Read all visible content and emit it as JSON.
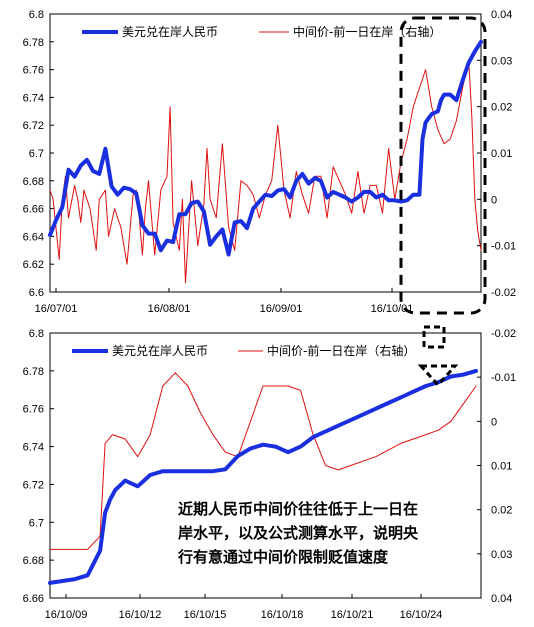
{
  "chart_data": [
    {
      "type": "line",
      "legend_position": "top",
      "x_tick_labels": [
        "16/07/01",
        "16/08/01",
        "16/09/01",
        "16/10/01"
      ],
      "y_left": {
        "range": [
          6.6,
          6.8
        ],
        "ticks": [
          "6.8",
          "6.78",
          "6.76",
          "6.74",
          "6.72",
          "6.7",
          "6.68",
          "6.66",
          "6.64",
          "6.62",
          "6.6"
        ]
      },
      "y_right": {
        "range": [
          -0.02,
          0.04
        ],
        "ticks": [
          "0.04",
          "0.03",
          "0.02",
          "0.01",
          "0",
          "-0.01",
          "-0.02"
        ]
      },
      "series": [
        {
          "name": "美元兑在岸人民币",
          "axis": "left",
          "color": "#1a2fe0",
          "x": [
            0,
            2,
            4,
            6,
            8,
            10,
            12,
            14,
            16,
            18,
            20,
            22,
            24,
            26,
            28,
            30,
            32,
            34,
            36,
            38,
            40,
            42,
            44,
            46,
            48,
            50,
            52,
            54,
            56,
            58,
            60,
            62,
            64,
            66,
            68,
            70,
            72,
            74,
            76,
            78,
            80,
            82,
            84,
            86,
            88,
            90,
            92,
            94,
            96,
            98,
            100,
            102,
            104,
            106,
            108,
            110,
            112,
            114,
            116,
            118,
            120,
            121,
            122,
            124,
            126,
            127,
            128,
            130,
            132,
            134,
            136,
            138,
            140
          ],
          "values": [
            6.641,
            6.652,
            6.661,
            6.688,
            6.683,
            6.691,
            6.695,
            6.687,
            6.685,
            6.703,
            6.676,
            6.67,
            6.675,
            6.674,
            6.671,
            6.648,
            6.642,
            6.642,
            6.63,
            6.637,
            6.636,
            6.656,
            6.656,
            6.664,
            6.665,
            6.658,
            6.634,
            6.64,
            6.645,
            6.627,
            6.65,
            6.651,
            6.646,
            6.66,
            6.665,
            6.67,
            6.669,
            6.673,
            6.674,
            6.668,
            6.68,
            6.685,
            6.678,
            6.682,
            6.68,
            6.668,
            6.672,
            6.67,
            6.668,
            6.665,
            6.668,
            6.672,
            6.672,
            6.668,
            6.67,
            6.666,
            6.666,
            6.665,
            6.666,
            6.67,
            6.67,
            6.71,
            6.722,
            6.728,
            6.73,
            6.738,
            6.742,
            6.742,
            6.738,
            6.752,
            6.765,
            6.773,
            6.78
          ]
        },
        {
          "name": "中间价-前一日在岸（右轴）",
          "axis": "right",
          "color": "#e01010",
          "x": [
            0,
            1,
            3,
            4,
            5,
            6,
            8,
            9,
            10,
            11,
            13,
            15,
            16,
            18,
            19,
            21,
            23,
            25,
            27,
            28,
            29,
            30,
            31,
            32,
            34,
            36,
            38,
            39,
            40,
            42,
            43,
            44,
            45,
            46,
            48,
            50,
            51,
            52,
            54,
            56,
            58,
            60,
            62,
            64,
            66,
            68,
            70,
            72,
            74,
            76,
            78,
            80,
            82,
            84,
            86,
            88,
            90,
            92,
            94,
            96,
            98,
            100,
            102,
            104,
            106,
            108,
            110,
            112,
            114,
            116,
            118,
            120,
            122,
            124,
            126,
            128,
            130,
            132,
            134,
            136,
            137,
            138,
            139,
            140
          ],
          "values": [
            0.002,
            0.0,
            -0.013,
            0.0,
            0.005,
            -0.004,
            0.003,
            0.0,
            -0.005,
            0.002,
            -0.002,
            -0.011,
            0.0,
            0.002,
            -0.008,
            -0.002,
            -0.006,
            -0.014,
            0.001,
            0.002,
            -0.004,
            -0.012,
            -0.002,
            0.004,
            -0.012,
            0.002,
            0.005,
            0.02,
            -0.005,
            -0.011,
            0.0,
            -0.018,
            -0.007,
            0.004,
            -0.01,
            -0.001,
            0.011,
            0.0,
            -0.004,
            0.012,
            -0.006,
            -0.011,
            0.004,
            0.003,
            0.001,
            -0.004,
            0.001,
            0.004,
            0.016,
            0.002,
            -0.004,
            0.006,
            0.001,
            -0.003,
            0.005,
            0.005,
            -0.004,
            0.007,
            0.004,
            0.001,
            -0.003,
            0.006,
            -0.003,
            0.003,
            0.003,
            -0.003,
            0.011,
            0.0,
            0.008,
            0.013,
            0.02,
            0.024,
            0.028,
            0.02,
            0.015,
            0.012,
            0.013,
            0.017,
            0.024,
            0.03,
            0.018,
            0.0,
            -0.007,
            -0.011
          ]
        }
      ]
    },
    {
      "type": "line",
      "legend_position": "top",
      "x_tick_labels": [
        "16/10/09",
        "16/10/12",
        "16/10/15",
        "16/10/18",
        "16/10/21",
        "16/10/24"
      ],
      "y_left": {
        "range": [
          6.66,
          6.8
        ],
        "ticks": [
          "6.8",
          "6.78",
          "6.76",
          "6.74",
          "6.72",
          "6.7",
          "6.68",
          "6.66"
        ]
      },
      "y_right": {
        "range": [
          -0.02,
          0.04
        ],
        "inverted": true,
        "ticks": [
          "-0.02",
          "-0.01",
          "0",
          "0.01",
          "0.02",
          "0.03",
          "0.04"
        ]
      },
      "series": [
        {
          "name": "美元兑在岸人民币",
          "axis": "left",
          "color": "#1a2fe0",
          "x": [
            0,
            0.5,
            1,
            1.5,
            2,
            2.2,
            2.4,
            2.6,
            3,
            3.5,
            4,
            4.5,
            5,
            5.5,
            6,
            6.5,
            7,
            7.5,
            8,
            8.5,
            9,
            9.5,
            10,
            10.5,
            11,
            11.5,
            12,
            12.5,
            13,
            13.5,
            14,
            14.5,
            15,
            15.5,
            16,
            16.5,
            17
          ],
          "values": [
            6.668,
            6.669,
            6.67,
            6.672,
            6.685,
            6.705,
            6.712,
            6.717,
            6.722,
            6.719,
            6.725,
            6.727,
            6.727,
            6.727,
            6.727,
            6.727,
            6.728,
            6.735,
            6.739,
            6.741,
            6.74,
            6.737,
            6.74,
            6.745,
            6.748,
            6.751,
            6.754,
            6.757,
            6.76,
            6.763,
            6.766,
            6.769,
            6.772,
            6.774,
            6.777,
            6.778,
            6.78
          ]
        },
        {
          "name": "中间价-前一日在岸（右轴）",
          "axis": "right",
          "color": "#e01010",
          "x": [
            0,
            0.5,
            1,
            1.5,
            2,
            2.2,
            2.5,
            3,
            3.5,
            4,
            4.5,
            5,
            5.5,
            6,
            6.5,
            7,
            7.5,
            8,
            8.5,
            9,
            9.5,
            10,
            10.5,
            11,
            11.5,
            12,
            13,
            14,
            15,
            15.5,
            16,
            16.5,
            17
          ],
          "values": [
            0.029,
            0.029,
            0.029,
            0.029,
            0.026,
            0.005,
            0.003,
            0.004,
            0.008,
            0.003,
            -0.008,
            -0.011,
            -0.008,
            -0.002,
            0.003,
            0.007,
            0.008,
            0.0,
            -0.008,
            -0.008,
            -0.008,
            -0.007,
            0.003,
            0.01,
            0.011,
            0.01,
            0.008,
            0.005,
            0.003,
            0.002,
            0.0,
            -0.004,
            -0.008
          ]
        }
      ]
    }
  ],
  "annotation": {
    "lines": [
      "近期人民币中间价往往低于上一日在",
      "岸水平，以及公式测算水平，说明央",
      "行有意通过中间价限制贬值速度"
    ]
  },
  "colors": {
    "usd_cny": "#1a2fe0",
    "fixing_gap": "#e01010",
    "dashed_box": "#000000"
  }
}
